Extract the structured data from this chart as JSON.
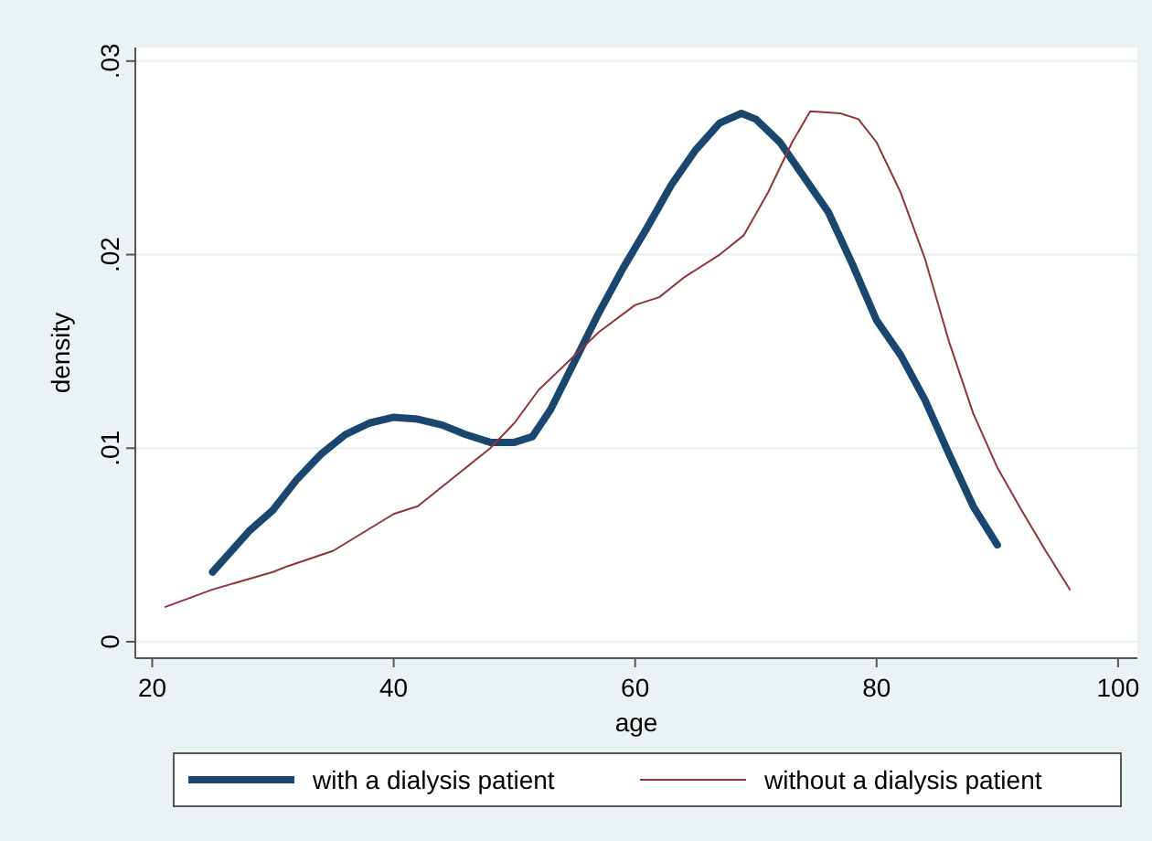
{
  "chart_data": {
    "type": "line",
    "xlabel": "age",
    "ylabel": "density",
    "xlim": [
      18.6,
      101.6
    ],
    "ylim": [
      -0.00085,
      0.0307
    ],
    "xticks": [
      20,
      40,
      60,
      80,
      100
    ],
    "yticks": [
      {
        "value": 0,
        "label": "0"
      },
      {
        "value": 0.01,
        "label": ".01"
      },
      {
        "value": 0.02,
        "label": ".02"
      },
      {
        "value": 0.03,
        "label": ".03"
      }
    ],
    "grid": "y",
    "legend": "bottom",
    "marker": "none",
    "line_style": "solid",
    "series": [
      {
        "name": "with a dialysis patient",
        "color": "#1a476f",
        "x": [
          25,
          28,
          30,
          32,
          34,
          36,
          38,
          40,
          42,
          44,
          46,
          48,
          50,
          51.5,
          53,
          55,
          57,
          59,
          61,
          63,
          65,
          67,
          68.8,
          70,
          72,
          74,
          76,
          78,
          80,
          82,
          84,
          86,
          88,
          90
        ],
        "values": [
          0.0036,
          0.0057,
          0.0068,
          0.0084,
          0.0097,
          0.0107,
          0.0113,
          0.0116,
          0.0115,
          0.0112,
          0.0107,
          0.0103,
          0.0103,
          0.0106,
          0.012,
          0.0145,
          0.017,
          0.0193,
          0.0214,
          0.0236,
          0.0254,
          0.0268,
          0.0273,
          0.027,
          0.0258,
          0.024,
          0.0222,
          0.0195,
          0.0166,
          0.0148,
          0.0125,
          0.0097,
          0.007,
          0.005
        ]
      },
      {
        "name": "without a dialysis patient",
        "color": "#90353b",
        "x": [
          21.1,
          25,
          30,
          31.2,
          35,
          40,
          42,
          45,
          48,
          50,
          52,
          55,
          57,
          60,
          62,
          64,
          67,
          69,
          71,
          73,
          74.5,
          77,
          78.5,
          80,
          82,
          84,
          86,
          88,
          90,
          92,
          94,
          96
        ],
        "values": [
          0.0018,
          0.0027,
          0.0036,
          0.0039,
          0.0047,
          0.0066,
          0.007,
          0.0085,
          0.01,
          0.0113,
          0.013,
          0.0148,
          0.016,
          0.0174,
          0.0178,
          0.0188,
          0.02,
          0.021,
          0.0232,
          0.0258,
          0.0274,
          0.0273,
          0.027,
          0.0258,
          0.0232,
          0.0198,
          0.0155,
          0.0118,
          0.009,
          0.0068,
          0.0047,
          0.0027
        ]
      }
    ]
  }
}
